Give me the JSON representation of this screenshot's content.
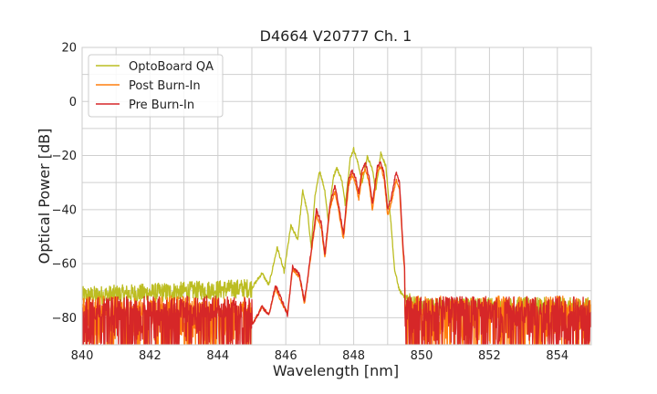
{
  "chart_data": {
    "type": "line",
    "title": "D4664 V20777 Ch. 1",
    "xlabel": "Wavelength [nm]",
    "ylabel": "Optical Power [dB]",
    "xlim": [
      840,
      855
    ],
    "ylim": [
      -90,
      20
    ],
    "xticks": [
      840,
      842,
      844,
      846,
      848,
      850,
      852,
      854
    ],
    "yticks": [
      20,
      0,
      -20,
      -40,
      -60,
      -80
    ],
    "xtick_labels": [
      "840",
      "842",
      "844",
      "846",
      "848",
      "850",
      "852",
      "854"
    ],
    "ytick_labels": [
      "20",
      "0",
      "−20",
      "−40",
      "−60",
      "−80"
    ],
    "grid": true,
    "legend_position": "top-left",
    "series": [
      {
        "name": "OptoBoard QA",
        "color": "#bcbd22",
        "noise_floor": -72,
        "noise_span": 7,
        "points": [
          [
            840,
            -72
          ],
          [
            845.0,
            -69
          ],
          [
            845.3,
            -63.5
          ],
          [
            845.5,
            -68
          ],
          [
            845.75,
            -54
          ],
          [
            845.95,
            -63
          ],
          [
            846.15,
            -46
          ],
          [
            846.35,
            -51
          ],
          [
            846.5,
            -33
          ],
          [
            846.65,
            -42
          ],
          [
            846.75,
            -54
          ],
          [
            846.85,
            -36
          ],
          [
            847.0,
            -25.5
          ],
          [
            847.15,
            -33
          ],
          [
            847.25,
            -44
          ],
          [
            847.4,
            -28
          ],
          [
            847.5,
            -24.5
          ],
          [
            847.65,
            -29
          ],
          [
            847.75,
            -38
          ],
          [
            847.9,
            -21
          ],
          [
            848.0,
            -17.5
          ],
          [
            848.15,
            -24
          ],
          [
            848.25,
            -30
          ],
          [
            848.4,
            -20.5
          ],
          [
            848.55,
            -25
          ],
          [
            848.65,
            -33
          ],
          [
            848.8,
            -19
          ],
          [
            848.95,
            -24
          ],
          [
            849.0,
            -32
          ],
          [
            849.1,
            -45
          ],
          [
            849.2,
            -62
          ],
          [
            849.35,
            -70
          ],
          [
            849.55,
            -73
          ],
          [
            849.75,
            -75
          ],
          [
            850.0,
            -76
          ],
          [
            855,
            -76
          ]
        ]
      },
      {
        "name": "Post Burn-In",
        "color": "#ff7f0e",
        "noise_floor": -84,
        "noise_span": 6,
        "points": [
          [
            840,
            -84
          ],
          [
            845.0,
            -83
          ],
          [
            845.3,
            -76
          ],
          [
            845.5,
            -79
          ],
          [
            845.7,
            -69
          ],
          [
            845.9,
            -75
          ],
          [
            846.05,
            -78
          ],
          [
            846.2,
            -62
          ],
          [
            846.4,
            -65
          ],
          [
            846.55,
            -75
          ],
          [
            846.75,
            -56
          ],
          [
            846.9,
            -42
          ],
          [
            847.05,
            -47
          ],
          [
            847.15,
            -58
          ],
          [
            847.3,
            -40
          ],
          [
            847.45,
            -33
          ],
          [
            847.55,
            -40
          ],
          [
            847.7,
            -51
          ],
          [
            847.85,
            -31
          ],
          [
            847.95,
            -27
          ],
          [
            848.05,
            -30
          ],
          [
            848.15,
            -36
          ],
          [
            848.25,
            -27
          ],
          [
            848.35,
            -25
          ],
          [
            848.45,
            -30
          ],
          [
            848.55,
            -40
          ],
          [
            848.7,
            -26
          ],
          [
            848.8,
            -24
          ],
          [
            848.9,
            -29
          ],
          [
            849.0,
            -42
          ],
          [
            849.1,
            -38
          ],
          [
            849.25,
            -29
          ],
          [
            849.35,
            -32
          ],
          [
            849.45,
            -55
          ],
          [
            849.6,
            -78
          ],
          [
            849.8,
            -86
          ],
          [
            855,
            -86
          ]
        ]
      },
      {
        "name": "Pre Burn-In",
        "color": "#d62728",
        "noise_floor": -84,
        "noise_span": 6,
        "points": [
          [
            840,
            -84
          ],
          [
            845.0,
            -83
          ],
          [
            845.3,
            -76
          ],
          [
            845.5,
            -79
          ],
          [
            845.7,
            -68
          ],
          [
            845.9,
            -74
          ],
          [
            846.05,
            -79
          ],
          [
            846.2,
            -61
          ],
          [
            846.4,
            -64
          ],
          [
            846.55,
            -74
          ],
          [
            846.75,
            -55
          ],
          [
            846.9,
            -40
          ],
          [
            847.05,
            -45
          ],
          [
            847.15,
            -57
          ],
          [
            847.3,
            -38
          ],
          [
            847.45,
            -31
          ],
          [
            847.55,
            -38
          ],
          [
            847.7,
            -49
          ],
          [
            847.85,
            -29
          ],
          [
            847.95,
            -25.5
          ],
          [
            848.05,
            -28
          ],
          [
            848.15,
            -34
          ],
          [
            848.25,
            -25
          ],
          [
            848.35,
            -23
          ],
          [
            848.45,
            -28
          ],
          [
            848.55,
            -38
          ],
          [
            848.7,
            -24
          ],
          [
            848.8,
            -22.5
          ],
          [
            848.9,
            -27
          ],
          [
            849.0,
            -40
          ],
          [
            849.1,
            -36
          ],
          [
            849.25,
            -26
          ],
          [
            849.35,
            -30
          ],
          [
            849.45,
            -53
          ],
          [
            849.6,
            -77
          ],
          [
            849.8,
            -86
          ],
          [
            855,
            -86
          ]
        ]
      }
    ]
  }
}
